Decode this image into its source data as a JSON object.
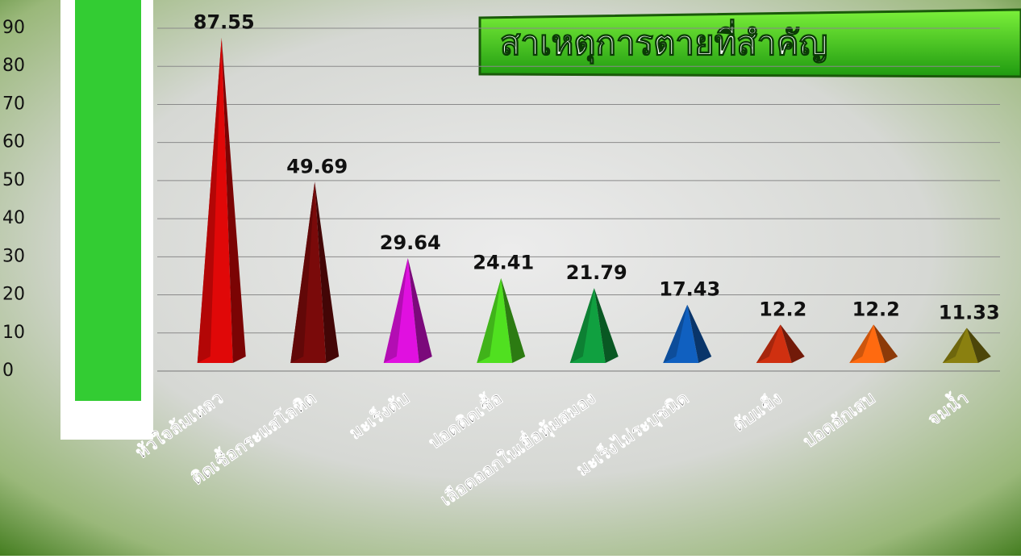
{
  "chart_data": {
    "type": "pyramid",
    "title": "สาเหตุการตายที่สำคัญ",
    "categories": [
      "หัวใจล้มเหลว",
      "ติดเชื้อกระแสโลหิต",
      "มะเร็งตับ",
      "ปอดติดเชื้อ",
      "เลือดออกในเยื่อหุ้มสมอง",
      "มะเร็งไม่ระบุชนิด",
      "ตับแข็ง",
      "ปอดอักเสบ",
      "จมน้ำ"
    ],
    "values": [
      87.55,
      49.69,
      29.64,
      24.41,
      21.79,
      17.43,
      12.2,
      12.2,
      11.33
    ],
    "colors": [
      "#e00808",
      "#7a0a0a",
      "#e010e0",
      "#50e020",
      "#10a040",
      "#1060c0",
      "#d03010",
      "#ff6a10",
      "#8a8010"
    ],
    "ylim": [
      0,
      90
    ],
    "yticks": [
      0,
      10,
      20,
      30,
      40,
      50,
      60,
      70,
      80,
      90
    ],
    "grid": true
  }
}
